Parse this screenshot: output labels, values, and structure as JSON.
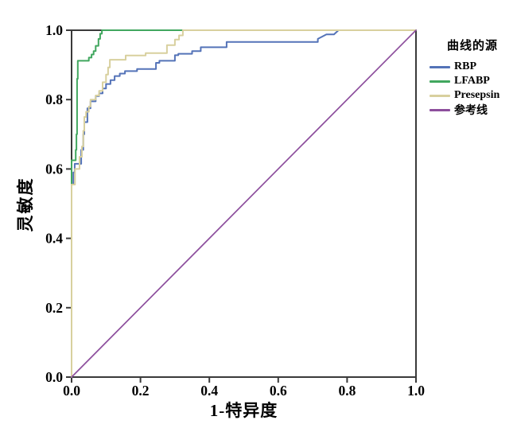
{
  "chart_data": {
    "type": "line",
    "title": "",
    "xlabel": "1-特异度",
    "ylabel": "灵敏度",
    "xlim": [
      0.0,
      1.0
    ],
    "ylim": [
      0.0,
      1.0
    ],
    "xticks": [
      0.0,
      0.2,
      0.4,
      0.6,
      0.8,
      1.0
    ],
    "yticks": [
      0.0,
      0.2,
      0.4,
      0.6,
      0.8,
      1.0
    ],
    "grid": false,
    "legend_title": "曲线的源",
    "legend_position": "upper-right",
    "frame_color": "#3a3a3a",
    "series": [
      {
        "name": "RBP",
        "slug": "rbp",
        "color": "#5473b8",
        "points": [
          [
            0,
            0
          ],
          [
            0,
            0.555
          ],
          [
            0.005,
            0.555
          ],
          [
            0.005,
            0.59
          ],
          [
            0.009,
            0.59
          ],
          [
            0.009,
            0.615
          ],
          [
            0.028,
            0.615
          ],
          [
            0.028,
            0.655
          ],
          [
            0.034,
            0.655
          ],
          [
            0.034,
            0.7
          ],
          [
            0.037,
            0.7
          ],
          [
            0.037,
            0.735
          ],
          [
            0.046,
            0.735
          ],
          [
            0.046,
            0.775
          ],
          [
            0.055,
            0.775
          ],
          [
            0.055,
            0.795
          ],
          [
            0.07,
            0.795
          ],
          [
            0.07,
            0.81
          ],
          [
            0.08,
            0.81
          ],
          [
            0.08,
            0.818
          ],
          [
            0.09,
            0.818
          ],
          [
            0.09,
            0.832
          ],
          [
            0.1,
            0.832
          ],
          [
            0.1,
            0.845
          ],
          [
            0.113,
            0.845
          ],
          [
            0.113,
            0.856
          ],
          [
            0.125,
            0.856
          ],
          [
            0.125,
            0.868
          ],
          [
            0.14,
            0.868
          ],
          [
            0.14,
            0.875
          ],
          [
            0.155,
            0.875
          ],
          [
            0.155,
            0.882
          ],
          [
            0.19,
            0.882
          ],
          [
            0.19,
            0.888
          ],
          [
            0.245,
            0.888
          ],
          [
            0.245,
            0.906
          ],
          [
            0.255,
            0.906
          ],
          [
            0.255,
            0.912
          ],
          [
            0.3,
            0.912
          ],
          [
            0.3,
            0.928
          ],
          [
            0.31,
            0.928
          ],
          [
            0.31,
            0.932
          ],
          [
            0.35,
            0.932
          ],
          [
            0.35,
            0.94
          ],
          [
            0.375,
            0.94
          ],
          [
            0.375,
            0.951
          ],
          [
            0.45,
            0.951
          ],
          [
            0.45,
            0.966
          ],
          [
            0.715,
            0.966
          ],
          [
            0.715,
            0.975
          ],
          [
            0.74,
            0.988
          ],
          [
            0.762,
            0.988
          ],
          [
            0.775,
            1.0
          ],
          [
            1,
            1
          ]
        ]
      },
      {
        "name": "LFABP",
        "slug": "lfabp",
        "color": "#41a75f",
        "points": [
          [
            0,
            0
          ],
          [
            0,
            0.625
          ],
          [
            0.012,
            0.625
          ],
          [
            0.012,
            0.655
          ],
          [
            0.014,
            0.655
          ],
          [
            0.014,
            0.7
          ],
          [
            0.016,
            0.7
          ],
          [
            0.016,
            0.86
          ],
          [
            0.018,
            0.86
          ],
          [
            0.018,
            0.912
          ],
          [
            0.05,
            0.912
          ],
          [
            0.05,
            0.921
          ],
          [
            0.058,
            0.921
          ],
          [
            0.058,
            0.93
          ],
          [
            0.064,
            0.93
          ],
          [
            0.064,
            0.94
          ],
          [
            0.07,
            0.94
          ],
          [
            0.07,
            0.955
          ],
          [
            0.078,
            0.955
          ],
          [
            0.078,
            0.975
          ],
          [
            0.083,
            0.975
          ],
          [
            0.083,
            0.99
          ],
          [
            0.088,
            0.99
          ],
          [
            0.088,
            1.0
          ],
          [
            1,
            1
          ]
        ]
      },
      {
        "name": "Presepsin",
        "slug": "presepsin",
        "color": "#d8d09e",
        "points": [
          [
            0,
            0
          ],
          [
            0,
            0.555
          ],
          [
            0.01,
            0.555
          ],
          [
            0.01,
            0.6
          ],
          [
            0.023,
            0.6
          ],
          [
            0.023,
            0.635
          ],
          [
            0.03,
            0.635
          ],
          [
            0.03,
            0.665
          ],
          [
            0.034,
            0.665
          ],
          [
            0.034,
            0.71
          ],
          [
            0.037,
            0.71
          ],
          [
            0.037,
            0.75
          ],
          [
            0.042,
            0.75
          ],
          [
            0.042,
            0.765
          ],
          [
            0.05,
            0.765
          ],
          [
            0.05,
            0.78
          ],
          [
            0.055,
            0.78
          ],
          [
            0.055,
            0.8
          ],
          [
            0.07,
            0.8
          ],
          [
            0.07,
            0.812
          ],
          [
            0.08,
            0.812
          ],
          [
            0.08,
            0.825
          ],
          [
            0.09,
            0.825
          ],
          [
            0.09,
            0.85
          ],
          [
            0.1,
            0.85
          ],
          [
            0.1,
            0.872
          ],
          [
            0.106,
            0.872
          ],
          [
            0.106,
            0.893
          ],
          [
            0.111,
            0.893
          ],
          [
            0.111,
            0.915
          ],
          [
            0.157,
            0.915
          ],
          [
            0.157,
            0.927
          ],
          [
            0.215,
            0.927
          ],
          [
            0.215,
            0.934
          ],
          [
            0.277,
            0.934
          ],
          [
            0.277,
            0.957
          ],
          [
            0.3,
            0.957
          ],
          [
            0.3,
            0.973
          ],
          [
            0.312,
            0.973
          ],
          [
            0.312,
            0.985
          ],
          [
            0.323,
            0.985
          ],
          [
            0.323,
            1.0
          ],
          [
            1,
            1
          ]
        ]
      },
      {
        "name": "参考线",
        "slug": "reference-line",
        "color": "#8d4f9d",
        "points": [
          [
            0,
            0
          ],
          [
            1,
            1
          ]
        ]
      }
    ]
  }
}
